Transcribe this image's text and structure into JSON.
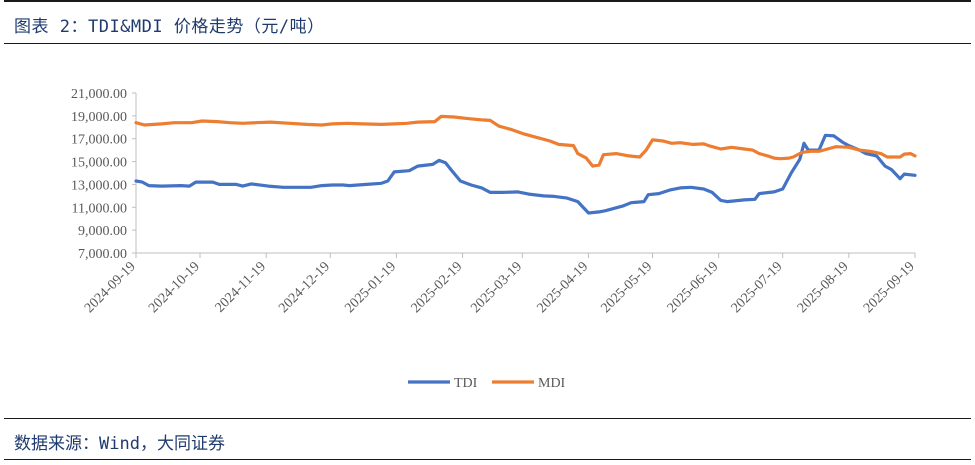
{
  "header": {
    "title": "图表 2：TDI&MDI 价格走势（元/吨）"
  },
  "footer": {
    "source": "数据来源：Wind，大同证券"
  },
  "chart_data": {
    "type": "line",
    "title": "图表 2：TDI&MDI 价格走势（元/吨）",
    "xlabel": "",
    "ylabel": "",
    "ylim": [
      7000,
      21000
    ],
    "yticks": [
      "21,000.00",
      "19,000.00",
      "17,000.00",
      "15,000.00",
      "13,000.00",
      "11,000.00",
      "9,000.00",
      "7,000.00"
    ],
    "ytick_values": [
      21000,
      19000,
      17000,
      15000,
      13000,
      11000,
      9000,
      7000
    ],
    "x_axis_dates": [
      "2024-09-19",
      "2024-10-19",
      "2024-11-19",
      "2024-12-19",
      "2025-01-19",
      "2025-02-19",
      "2025-03-19",
      "2025-04-19",
      "2025-05-19",
      "2025-06-19",
      "2025-07-19",
      "2025-08-19",
      "2025-09-19"
    ],
    "legend": "bottom",
    "series": [
      {
        "name": "TDI",
        "color": "#4472C4",
        "points": [
          [
            "2024-09-19",
            13300
          ],
          [
            "2024-09-22",
            13200
          ],
          [
            "2024-09-25",
            12900
          ],
          [
            "2024-10-01",
            12850
          ],
          [
            "2024-10-10",
            12900
          ],
          [
            "2024-10-14",
            12850
          ],
          [
            "2024-10-17",
            13200
          ],
          [
            "2024-10-25",
            13200
          ],
          [
            "2024-10-28",
            13000
          ],
          [
            "2024-11-05",
            13000
          ],
          [
            "2024-11-08",
            12850
          ],
          [
            "2024-11-12",
            13050
          ],
          [
            "2024-11-20",
            12850
          ],
          [
            "2024-11-27",
            12750
          ],
          [
            "2024-12-10",
            12750
          ],
          [
            "2024-12-15",
            12900
          ],
          [
            "2024-12-20",
            12950
          ],
          [
            "2024-12-25",
            12950
          ],
          [
            "2024-12-28",
            12900
          ],
          [
            "2025-01-05",
            13000
          ],
          [
            "2025-01-12",
            13100
          ],
          [
            "2025-01-15",
            13300
          ],
          [
            "2025-01-18",
            14100
          ],
          [
            "2025-01-25",
            14200
          ],
          [
            "2025-01-29",
            14600
          ],
          [
            "2025-02-05",
            14750
          ],
          [
            "2025-02-08",
            15100
          ],
          [
            "2025-02-11",
            14900
          ],
          [
            "2025-02-14",
            14200
          ],
          [
            "2025-02-18",
            13300
          ],
          [
            "2025-02-23",
            12950
          ],
          [
            "2025-02-28",
            12700
          ],
          [
            "2025-03-04",
            12300
          ],
          [
            "2025-03-10",
            12300
          ],
          [
            "2025-03-17",
            12350
          ],
          [
            "2025-03-22",
            12150
          ],
          [
            "2025-03-29",
            12000
          ],
          [
            "2025-04-03",
            11950
          ],
          [
            "2025-04-09",
            11800
          ],
          [
            "2025-04-14",
            11500
          ],
          [
            "2025-04-19",
            10500
          ],
          [
            "2025-04-24",
            10600
          ],
          [
            "2025-04-27",
            10700
          ],
          [
            "2025-05-05",
            11100
          ],
          [
            "2025-05-09",
            11400
          ],
          [
            "2025-05-15",
            11500
          ],
          [
            "2025-05-17",
            12100
          ],
          [
            "2025-05-22",
            12200
          ],
          [
            "2025-05-27",
            12500
          ],
          [
            "2025-06-01",
            12700
          ],
          [
            "2025-06-06",
            12750
          ],
          [
            "2025-06-12",
            12600
          ],
          [
            "2025-06-16",
            12300
          ],
          [
            "2025-06-20",
            11600
          ],
          [
            "2025-06-23",
            11500
          ],
          [
            "2025-07-01",
            11650
          ],
          [
            "2025-07-06",
            11700
          ],
          [
            "2025-07-08",
            12200
          ],
          [
            "2025-07-15",
            12350
          ],
          [
            "2025-07-19",
            12600
          ],
          [
            "2025-07-23",
            14000
          ],
          [
            "2025-07-27",
            15200
          ],
          [
            "2025-07-29",
            16600
          ],
          [
            "2025-07-31",
            16000
          ],
          [
            "2025-08-05",
            16000
          ],
          [
            "2025-08-08",
            17300
          ],
          [
            "2025-08-12",
            17250
          ],
          [
            "2025-08-16",
            16700
          ],
          [
            "2025-08-19",
            16400
          ],
          [
            "2025-08-24",
            16000
          ],
          [
            "2025-08-27",
            15700
          ],
          [
            "2025-09-01",
            15500
          ],
          [
            "2025-09-05",
            14600
          ],
          [
            "2025-09-08",
            14300
          ],
          [
            "2025-09-12",
            13500
          ],
          [
            "2025-09-14",
            13900
          ],
          [
            "2025-09-19",
            13800
          ]
        ]
      },
      {
        "name": "MDI",
        "color": "#ED7D31",
        "points": [
          [
            "2024-09-19",
            18400
          ],
          [
            "2024-09-23",
            18200
          ],
          [
            "2024-10-01",
            18300
          ],
          [
            "2024-10-07",
            18400
          ],
          [
            "2024-10-15",
            18400
          ],
          [
            "2024-10-20",
            18550
          ],
          [
            "2024-10-27",
            18500
          ],
          [
            "2024-11-02",
            18400
          ],
          [
            "2024-11-08",
            18350
          ],
          [
            "2024-11-14",
            18400
          ],
          [
            "2024-11-21",
            18450
          ],
          [
            "2024-11-30",
            18350
          ],
          [
            "2024-12-08",
            18250
          ],
          [
            "2024-12-15",
            18200
          ],
          [
            "2024-12-20",
            18300
          ],
          [
            "2024-12-27",
            18350
          ],
          [
            "2025-01-03",
            18300
          ],
          [
            "2025-01-12",
            18250
          ],
          [
            "2025-01-18",
            18300
          ],
          [
            "2025-01-24",
            18350
          ],
          [
            "2025-01-29",
            18450
          ],
          [
            "2025-02-06",
            18500
          ],
          [
            "2025-02-09",
            18950
          ],
          [
            "2025-02-15",
            18900
          ],
          [
            "2025-02-22",
            18750
          ],
          [
            "2025-02-28",
            18650
          ],
          [
            "2025-03-04",
            18600
          ],
          [
            "2025-03-08",
            18100
          ],
          [
            "2025-03-14",
            17800
          ],
          [
            "2025-03-20",
            17400
          ],
          [
            "2025-03-26",
            17100
          ],
          [
            "2025-04-01",
            16800
          ],
          [
            "2025-04-05",
            16500
          ],
          [
            "2025-04-12",
            16400
          ],
          [
            "2025-04-14",
            15700
          ],
          [
            "2025-04-18",
            15300
          ],
          [
            "2025-04-21",
            14600
          ],
          [
            "2025-04-24",
            14700
          ],
          [
            "2025-04-26",
            15600
          ],
          [
            "2025-05-02",
            15700
          ],
          [
            "2025-05-08",
            15500
          ],
          [
            "2025-05-13",
            15400
          ],
          [
            "2025-05-16",
            16000
          ],
          [
            "2025-05-19",
            16900
          ],
          [
            "2025-05-24",
            16800
          ],
          [
            "2025-05-28",
            16600
          ],
          [
            "2025-06-01",
            16650
          ],
          [
            "2025-06-07",
            16500
          ],
          [
            "2025-06-12",
            16550
          ],
          [
            "2025-06-15",
            16350
          ],
          [
            "2025-06-20",
            16100
          ],
          [
            "2025-06-25",
            16250
          ],
          [
            "2025-07-01",
            16100
          ],
          [
            "2025-07-05",
            16000
          ],
          [
            "2025-07-08",
            15700
          ],
          [
            "2025-07-12",
            15500
          ],
          [
            "2025-07-15",
            15300
          ],
          [
            "2025-07-18",
            15250
          ],
          [
            "2025-07-22",
            15300
          ],
          [
            "2025-07-24",
            15400
          ],
          [
            "2025-07-28",
            15800
          ],
          [
            "2025-08-01",
            15900
          ],
          [
            "2025-08-05",
            15900
          ],
          [
            "2025-08-09",
            16100
          ],
          [
            "2025-08-13",
            16300
          ],
          [
            "2025-08-19",
            16250
          ],
          [
            "2025-08-24",
            16000
          ],
          [
            "2025-08-29",
            15900
          ],
          [
            "2025-09-03",
            15700
          ],
          [
            "2025-09-06",
            15400
          ],
          [
            "2025-09-12",
            15400
          ],
          [
            "2025-09-14",
            15650
          ],
          [
            "2025-09-17",
            15700
          ],
          [
            "2025-09-19",
            15500
          ]
        ]
      }
    ]
  }
}
